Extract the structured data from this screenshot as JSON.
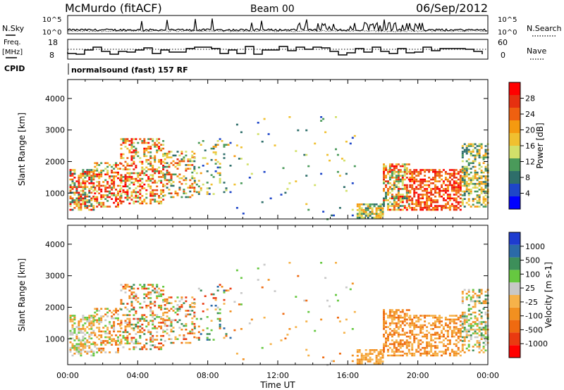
{
  "header": {
    "station": "McMurdo (fitACF)",
    "beam": "Beam 00",
    "date": "06/Sep/2012"
  },
  "noise_panel": {
    "left_label": "N.Sky",
    "right_label": "N.Search",
    "left_ticks": [
      "10^5",
      "10^0"
    ],
    "right_ticks": [
      "10^5",
      "10^0"
    ]
  },
  "freq_panel": {
    "left_label_1": "Freq.",
    "left_label_2": "[MHz]",
    "right_label": "Nave",
    "left_ticks": [
      "18",
      "8"
    ],
    "right_ticks": [
      "60",
      "0"
    ]
  },
  "cpid": {
    "label": "CPID",
    "text": "normalsound (fast) 157 RF"
  },
  "chart_data": [
    {
      "type": "heatmap",
      "title": "",
      "ylabel": "Slant Range [km]",
      "yticks": [
        "1000",
        "2000",
        "3000",
        "4000"
      ],
      "ylim": [
        180,
        4600
      ],
      "xlim": [
        0,
        24
      ],
      "colorbar": {
        "label": "Power [dB]",
        "ticks": [
          "4",
          "8",
          "12",
          "16",
          "20",
          "24",
          "28"
        ],
        "range": [
          0,
          32
        ],
        "colors": [
          "#0000ff",
          "#1e46c8",
          "#2e6e6a",
          "#4a9a5a",
          "#d2e06a",
          "#f0c030",
          "#f59a10",
          "#ef6010",
          "#e63010",
          "#ff0000"
        ]
      }
    },
    {
      "type": "heatmap",
      "title": "",
      "ylabel": "Slant Range [km]",
      "yticks": [
        "1000",
        "2000",
        "3000",
        "4000"
      ],
      "ylim": [
        180,
        4600
      ],
      "xlim": [
        0,
        24
      ],
      "xticks": [
        "00:00",
        "04:00",
        "08:00",
        "12:00",
        "16:00",
        "20:00",
        "00:00"
      ],
      "xlabel": "Time UT",
      "colorbar": {
        "label": "Velocity [m s-1]",
        "ticks": [
          "1000",
          "500",
          "100",
          "25",
          "-25",
          "-100",
          "-500",
          "-1000"
        ],
        "colors": [
          "#1e3cd0",
          "#2b6aa8",
          "#3d8f5a",
          "#66c840",
          "#c8c8c8",
          "#f6b24a",
          "#f29020",
          "#ef6a10",
          "#ea3a10",
          "#ff0000"
        ]
      }
    }
  ]
}
